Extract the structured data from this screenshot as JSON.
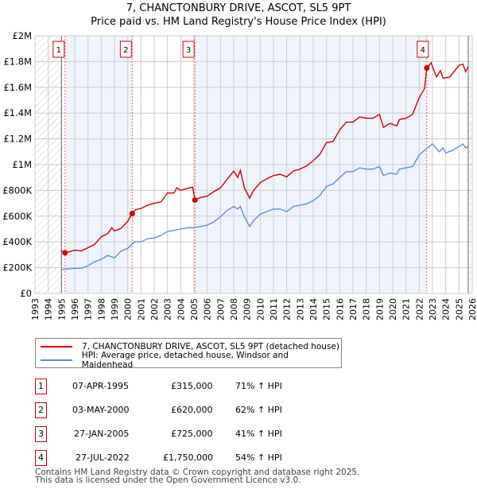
{
  "title": "7, CHANCTONBURY DRIVE, ASCOT, SL5 9PT",
  "subtitle": "Price paid vs. HM Land Registry's House Price Index (HPI)",
  "chart_data": {
    "type": "line",
    "title": "7, CHANCTONBURY DRIVE, ASCOT, SL5 9PT",
    "subtitle": "Price paid vs. HM Land Registry's House Price Index (HPI)",
    "xlim": [
      1993,
      2026
    ],
    "ylim": [
      0,
      2000000
    ],
    "x_ticks": [
      "1993",
      "1994",
      "1995",
      "1996",
      "1997",
      "1998",
      "1999",
      "2000",
      "2001",
      "2002",
      "2003",
      "2004",
      "2005",
      "2006",
      "2007",
      "2008",
      "2009",
      "2010",
      "2011",
      "2012",
      "2013",
      "2014",
      "2015",
      "2016",
      "2017",
      "2018",
      "2019",
      "2020",
      "2021",
      "2022",
      "2023",
      "2024",
      "2025",
      "2026"
    ],
    "y_ticks": [
      {
        "v": 0,
        "label": "£0"
      },
      {
        "v": 200000,
        "label": "£200K"
      },
      {
        "v": 400000,
        "label": "£400K"
      },
      {
        "v": 600000,
        "label": "£600K"
      },
      {
        "v": 800000,
        "label": "£800K"
      },
      {
        "v": 1000000,
        "label": "£1M"
      },
      {
        "v": 1200000,
        "label": "£1.2M"
      },
      {
        "v": 1400000,
        "label": "£1.4M"
      },
      {
        "v": 1600000,
        "label": "£1.6M"
      },
      {
        "v": 1800000,
        "label": "£1.8M"
      },
      {
        "v": 2000000,
        "label": "£2M"
      }
    ],
    "grid": true,
    "series": [
      {
        "name": "7, CHANCTONBURY DRIVE, ASCOT, SL5 9PT (detached house)",
        "color": "#cc0000",
        "x": [
          1995.0,
          1995.27,
          1996,
          1996.5,
          1997,
          1997.5,
          1998,
          1998.5,
          1998.8,
          1999,
          1999.5,
          2000,
          2000.33,
          2000.6,
          2001,
          2001.5,
          2002,
          2002.5,
          2003,
          2003.5,
          2003.7,
          2004,
          2004.5,
          2004.9,
          2005.07,
          2005.5,
          2006,
          2006.5,
          2007,
          2007.5,
          2008,
          2008.3,
          2008.5,
          2008.8,
          2009.2,
          2009.5,
          2010,
          2010.5,
          2011,
          2011.5,
          2012,
          2012.5,
          2013,
          2013.5,
          2014,
          2014.5,
          2015,
          2015.5,
          2016,
          2016.5,
          2017,
          2017.5,
          2018,
          2018.5,
          2019,
          2019.3,
          2019.8,
          2020.3,
          2020.5,
          2021,
          2021.5,
          2022,
          2022.4,
          2022.57,
          2022.9,
          2023.3,
          2023.6,
          2023.8,
          2024.3,
          2025,
          2025.3,
          2025.5,
          2025.7
        ],
        "y": [
          330000,
          315000,
          335000,
          330000,
          355000,
          380000,
          440000,
          465000,
          510000,
          485000,
          505000,
          560000,
          620000,
          650000,
          660000,
          685000,
          700000,
          710000,
          780000,
          780000,
          820000,
          800000,
          815000,
          825000,
          725000,
          745000,
          755000,
          790000,
          820000,
          885000,
          950000,
          900000,
          955000,
          820000,
          740000,
          800000,
          860000,
          890000,
          915000,
          925000,
          905000,
          950000,
          965000,
          990000,
          1030000,
          1080000,
          1170000,
          1180000,
          1270000,
          1330000,
          1330000,
          1370000,
          1360000,
          1360000,
          1390000,
          1290000,
          1320000,
          1300000,
          1350000,
          1360000,
          1390000,
          1520000,
          1590000,
          1750000,
          1790000,
          1680000,
          1730000,
          1670000,
          1680000,
          1770000,
          1780000,
          1720000,
          1760000
        ]
      },
      {
        "name": "HPI: Average price, detached house, Windsor and Maidenhead",
        "color": "#5b8fd4",
        "x": [
          1995.0,
          1996,
          1996.5,
          1997,
          1997.5,
          1998,
          1998.5,
          1999,
          1999.5,
          2000,
          2000.5,
          2001,
          2001.5,
          2002,
          2002.5,
          2003,
          2003.5,
          2004,
          2004.5,
          2005,
          2005.5,
          2006,
          2006.5,
          2007,
          2007.5,
          2008,
          2008.3,
          2008.5,
          2008.8,
          2009.2,
          2009.5,
          2010,
          2010.5,
          2011,
          2011.5,
          2012,
          2012.5,
          2013,
          2013.5,
          2014,
          2014.5,
          2015,
          2015.5,
          2016,
          2016.5,
          2017,
          2017.5,
          2018,
          2018.5,
          2019,
          2019.3,
          2019.8,
          2020.3,
          2020.5,
          2021,
          2021.5,
          2022,
          2022.5,
          2023,
          2023.5,
          2023.8,
          2024,
          2024.5,
          2025,
          2025.3,
          2025.5,
          2025.7
        ],
        "y": [
          185000,
          195000,
          195000,
          215000,
          245000,
          265000,
          295000,
          275000,
          330000,
          350000,
          400000,
          400000,
          425000,
          430000,
          450000,
          480000,
          490000,
          500000,
          510000,
          510000,
          520000,
          530000,
          555000,
          595000,
          645000,
          675000,
          655000,
          675000,
          595000,
          520000,
          565000,
          615000,
          635000,
          655000,
          655000,
          635000,
          675000,
          685000,
          695000,
          720000,
          760000,
          830000,
          850000,
          900000,
          945000,
          945000,
          975000,
          965000,
          965000,
          985000,
          915000,
          935000,
          925000,
          965000,
          975000,
          985000,
          1075000,
          1120000,
          1160000,
          1100000,
          1130000,
          1090000,
          1110000,
          1140000,
          1160000,
          1130000,
          1140000
        ]
      }
    ],
    "sales": [
      {
        "label": "1",
        "x": 2000.33,
        "date": "03-MAY-2000"
      }
    ],
    "markers": [
      {
        "label": "1",
        "x": 1995.27,
        "y": 315000
      },
      {
        "label": "2",
        "x": 2000.34,
        "y": 620000
      },
      {
        "label": "3",
        "x": 2005.07,
        "y": 725000
      },
      {
        "label": "4",
        "x": 2022.57,
        "y": 1750000
      }
    ],
    "legend_position": "below"
  },
  "legend": [
    {
      "label": "7, CHANCTONBURY DRIVE, ASCOT, SL5 9PT (detached house)",
      "color": "#cc0000"
    },
    {
      "label": "HPI: Average price, detached house, Windsor and Maidenhead",
      "color": "#5b8fd4"
    }
  ],
  "transactions": [
    {
      "num": "1",
      "date": "07-APR-1995",
      "price": "£315,000",
      "hpi": "71% ↑ HPI"
    },
    {
      "num": "2",
      "date": "03-MAY-2000",
      "price": "£620,000",
      "hpi": "62% ↑ HPI"
    },
    {
      "num": "3",
      "date": "27-JAN-2005",
      "price": "£725,000",
      "hpi": "41% ↑ HPI"
    },
    {
      "num": "4",
      "date": "27-JUL-2022",
      "price": "£1,750,000",
      "hpi": "54% ↑ HPI"
    }
  ],
  "footer": {
    "line1": "Contains HM Land Registry data © Crown copyright and database right 2025.",
    "line2": "This data is licensed under the Open Government Licence v3.0."
  }
}
